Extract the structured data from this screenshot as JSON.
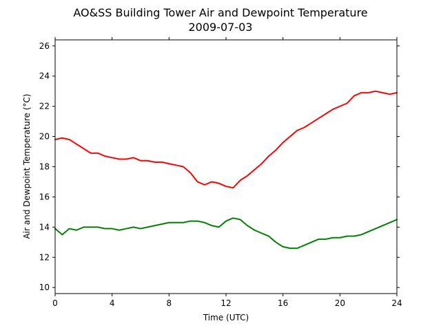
{
  "chart_data": {
    "type": "line",
    "title": "AO&SS Building Tower Air and Dewpoint Temperature",
    "subtitle": "2009-07-03",
    "xlabel": "Time (UTC)",
    "ylabel": "Air and Dewpoint Temperature (°C)",
    "xlim": [
      0,
      24
    ],
    "ylim": [
      9.6,
      26.4
    ],
    "xticks": [
      0,
      4,
      8,
      12,
      16,
      20,
      24
    ],
    "yticks": [
      10,
      12,
      14,
      16,
      18,
      20,
      22,
      24,
      26
    ],
    "grid": false,
    "legend": "none",
    "series": [
      {
        "color": "#ff0000",
        "x": [
          0,
          0.5,
          1,
          1.5,
          2,
          2.5,
          3,
          3.5,
          4,
          4.5,
          5,
          5.5,
          6,
          6.5,
          7,
          7.5,
          8,
          8.5,
          9,
          9.5,
          10,
          10.5,
          11,
          11.5,
          12,
          12.5,
          13,
          13.5,
          14,
          14.5,
          15,
          15.5,
          16,
          16.5,
          17,
          17.5,
          18,
          18.5,
          19,
          19.5,
          20,
          20.5,
          21,
          21.5,
          22,
          22.5,
          23,
          23.5,
          24
        ],
        "values": [
          19.8,
          19.9,
          19.8,
          19.5,
          19.2,
          18.9,
          18.9,
          18.7,
          18.6,
          18.5,
          18.5,
          18.6,
          18.4,
          18.4,
          18.3,
          18.3,
          18.2,
          18.1,
          18.0,
          17.6,
          17.0,
          16.8,
          17.0,
          16.9,
          16.7,
          16.6,
          17.1,
          17.4,
          17.8,
          18.2,
          18.7,
          19.1,
          19.6,
          20.0,
          20.4,
          20.6,
          20.9,
          21.2,
          21.5,
          21.8,
          22.0,
          22.2,
          22.7,
          22.9,
          22.9,
          23.0,
          22.9,
          22.8,
          22.9
        ]
      },
      {
        "color": "#008000",
        "x": [
          0,
          0.5,
          1,
          1.5,
          2,
          2.5,
          3,
          3.5,
          4,
          4.5,
          5,
          5.5,
          6,
          6.5,
          7,
          7.5,
          8,
          8.5,
          9,
          9.5,
          10,
          10.5,
          11,
          11.5,
          12,
          12.5,
          13,
          13.5,
          14,
          14.5,
          15,
          15.5,
          16,
          16.5,
          17,
          17.5,
          18,
          18.5,
          19,
          19.5,
          20,
          20.5,
          21,
          21.5,
          22,
          22.5,
          23,
          23.5,
          24
        ],
        "values": [
          13.9,
          13.5,
          13.9,
          13.8,
          14.0,
          14.0,
          14.0,
          13.9,
          13.9,
          13.8,
          13.9,
          14.0,
          13.9,
          14.0,
          14.1,
          14.2,
          14.3,
          14.3,
          14.3,
          14.4,
          14.4,
          14.3,
          14.1,
          14.0,
          14.4,
          14.6,
          14.5,
          14.1,
          13.8,
          13.6,
          13.4,
          13.0,
          12.7,
          12.6,
          12.6,
          12.8,
          13.0,
          13.2,
          13.2,
          13.3,
          13.3,
          13.4,
          13.4,
          13.5,
          13.7,
          13.9,
          14.1,
          14.3,
          14.5
        ]
      }
    ]
  }
}
